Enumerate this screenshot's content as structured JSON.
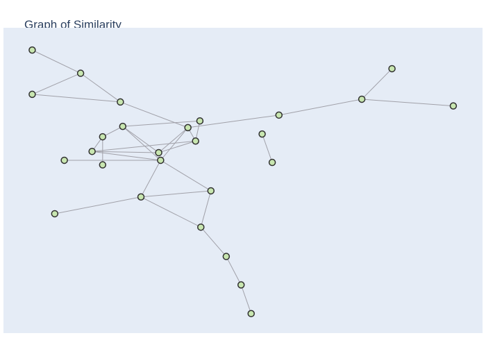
{
  "chart_data": {
    "type": "scatter",
    "title": "Graph of Similarity",
    "xlabel": "",
    "ylabel": "",
    "xlim": [
      0,
      1
    ],
    "ylim": [
      0,
      1
    ],
    "grid": false,
    "colors": {
      "background": "#e5ecf6",
      "node_fill": "#c8e6b0",
      "node_stroke": "#2f2f2f",
      "edge": "#a0a0a8"
    },
    "nodes": [
      {
        "id": "n1",
        "x": 0.06,
        "y": 0.927
      },
      {
        "id": "n2",
        "x": 0.161,
        "y": 0.851
      },
      {
        "id": "n3",
        "x": 0.06,
        "y": 0.782
      },
      {
        "id": "n4",
        "x": 0.244,
        "y": 0.757
      },
      {
        "id": "n5",
        "x": 0.811,
        "y": 0.866
      },
      {
        "id": "n6",
        "x": 0.748,
        "y": 0.766
      },
      {
        "id": "n7",
        "x": 0.939,
        "y": 0.744
      },
      {
        "id": "n8",
        "x": 0.575,
        "y": 0.714
      },
      {
        "id": "n9",
        "x": 0.41,
        "y": 0.695
      },
      {
        "id": "n10",
        "x": 0.249,
        "y": 0.677
      },
      {
        "id": "n11",
        "x": 0.385,
        "y": 0.673
      },
      {
        "id": "n12",
        "x": 0.207,
        "y": 0.643
      },
      {
        "id": "n13",
        "x": 0.54,
        "y": 0.652
      },
      {
        "id": "n14",
        "x": 0.401,
        "y": 0.629
      },
      {
        "id": "n15",
        "x": 0.185,
        "y": 0.595
      },
      {
        "id": "n16",
        "x": 0.324,
        "y": 0.591
      },
      {
        "id": "n17",
        "x": 0.127,
        "y": 0.566
      },
      {
        "id": "n18",
        "x": 0.328,
        "y": 0.566
      },
      {
        "id": "n19",
        "x": 0.207,
        "y": 0.551
      },
      {
        "id": "n20",
        "x": 0.561,
        "y": 0.559
      },
      {
        "id": "n21",
        "x": 0.433,
        "y": 0.466
      },
      {
        "id": "n22",
        "x": 0.287,
        "y": 0.446
      },
      {
        "id": "n23",
        "x": 0.107,
        "y": 0.391
      },
      {
        "id": "n24",
        "x": 0.412,
        "y": 0.347
      },
      {
        "id": "n25",
        "x": 0.465,
        "y": 0.251
      },
      {
        "id": "n26",
        "x": 0.496,
        "y": 0.158
      },
      {
        "id": "n27",
        "x": 0.517,
        "y": 0.064
      }
    ],
    "edges": [
      [
        "n1",
        "n2"
      ],
      [
        "n2",
        "n3"
      ],
      [
        "n2",
        "n4"
      ],
      [
        "n3",
        "n4"
      ],
      [
        "n4",
        "n11"
      ],
      [
        "n5",
        "n6"
      ],
      [
        "n6",
        "n7"
      ],
      [
        "n6",
        "n8"
      ],
      [
        "n8",
        "n11"
      ],
      [
        "n10",
        "n9"
      ],
      [
        "n10",
        "n12"
      ],
      [
        "n10",
        "n16"
      ],
      [
        "n10",
        "n18"
      ],
      [
        "n9",
        "n14"
      ],
      [
        "n11",
        "n14"
      ],
      [
        "n11",
        "n16"
      ],
      [
        "n11",
        "n18"
      ],
      [
        "n12",
        "n15"
      ],
      [
        "n12",
        "n19"
      ],
      [
        "n15",
        "n14"
      ],
      [
        "n15",
        "n16"
      ],
      [
        "n15",
        "n18"
      ],
      [
        "n16",
        "n14"
      ],
      [
        "n17",
        "n18"
      ],
      [
        "n13",
        "n20"
      ],
      [
        "n18",
        "n21"
      ],
      [
        "n18",
        "n22"
      ],
      [
        "n22",
        "n21"
      ],
      [
        "n22",
        "n23"
      ],
      [
        "n22",
        "n24"
      ],
      [
        "n21",
        "n24"
      ],
      [
        "n24",
        "n25"
      ],
      [
        "n25",
        "n26"
      ],
      [
        "n26",
        "n27"
      ]
    ]
  }
}
